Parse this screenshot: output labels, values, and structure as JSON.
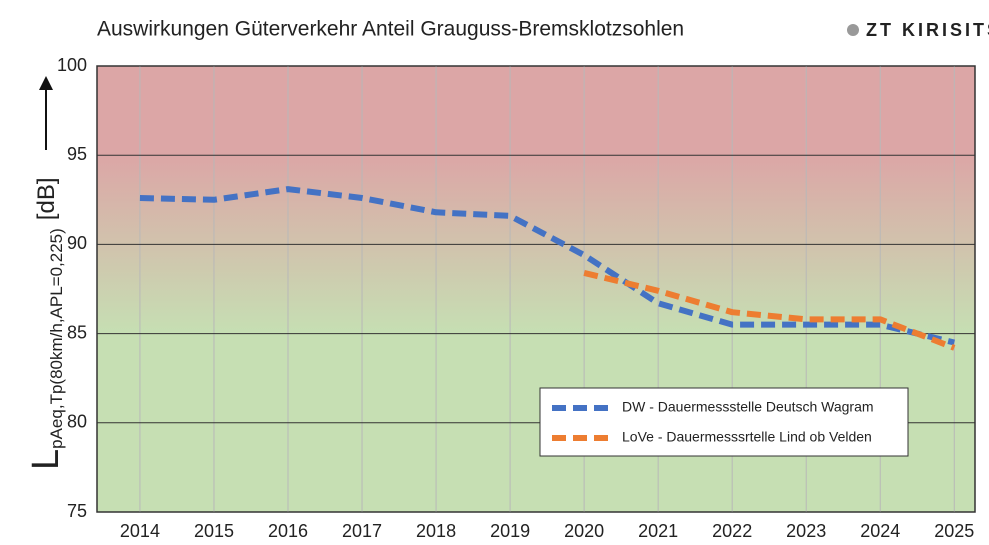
{
  "chart_data": {
    "type": "line",
    "title": "Auswirkungen Güterverkehr Anteil Grauguss-Bremsklotzsohlen",
    "logo": "ZT KIRISITS",
    "ylabel": {
      "symbol": "L",
      "subscript": "pAeq,Tp(80km/h,APL=0,225)",
      "unit": "[dB]"
    },
    "x": [
      2014,
      2015,
      2016,
      2017,
      2018,
      2019,
      2020,
      2021,
      2022,
      2023,
      2024,
      2025
    ],
    "series": [
      {
        "name": "DW - Dauermessstelle Deutsch Wagram",
        "color": "#4472c4",
        "values": [
          92.6,
          92.5,
          93.1,
          92.6,
          91.8,
          91.6,
          89.4,
          86.7,
          85.5,
          85.5,
          85.5,
          84.5
        ]
      },
      {
        "name": "LoVe - Dauermesssrtelle Lind ob Velden",
        "color": "#ed7d31",
        "values": [
          null,
          null,
          null,
          null,
          null,
          null,
          88.4,
          87.4,
          86.2,
          85.8,
          85.8,
          84.2
        ]
      }
    ],
    "xlim": [
      2013.42,
      2025.28
    ],
    "xticks": [
      2014,
      2015,
      2016,
      2017,
      2018,
      2019,
      2020,
      2021,
      2022,
      2023,
      2024,
      2025
    ],
    "ylim": [
      75,
      100
    ],
    "yticks": [
      75,
      80,
      85,
      90,
      95,
      100
    ],
    "grid": true,
    "legend": "lower right"
  }
}
